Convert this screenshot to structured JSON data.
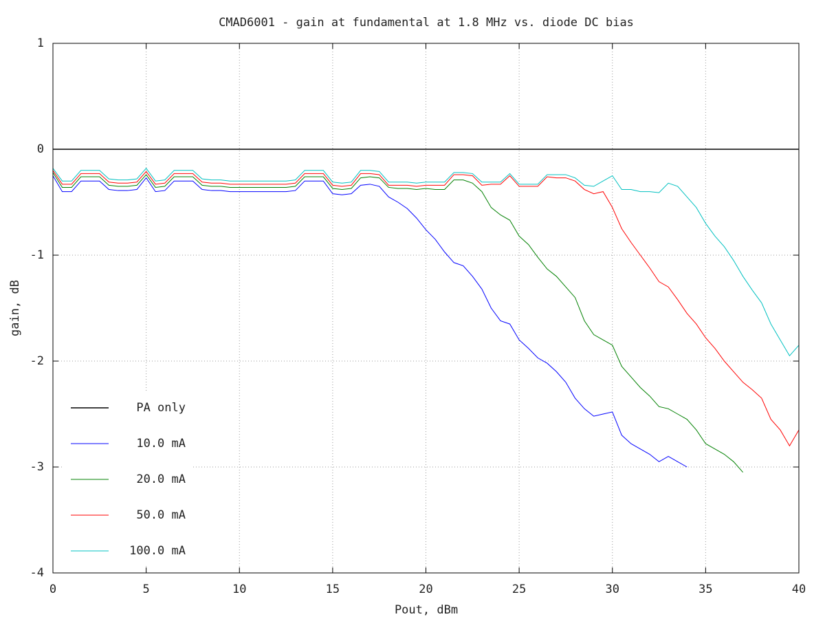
{
  "chart_data": {
    "type": "line",
    "title": "CMAD6001 - gain at fundamental at 1.8 MHz vs. diode DC bias",
    "xlabel": "Pout, dBm",
    "ylabel": "gain, dB",
    "xlim": [
      0,
      40
    ],
    "ylim": [
      -4,
      1
    ],
    "xticks": [
      0,
      5,
      10,
      15,
      20,
      25,
      30,
      35,
      40
    ],
    "yticks": [
      -4,
      -3,
      -2,
      -1,
      0,
      1
    ],
    "grid": true,
    "legend": "lower-left",
    "x": [
      0,
      0.5,
      1,
      1.5,
      2,
      2.5,
      3,
      3.5,
      4,
      4.5,
      5,
      5.5,
      6,
      6.5,
      7,
      7.5,
      8,
      8.5,
      9,
      9.5,
      10,
      10.5,
      11,
      11.5,
      12,
      12.5,
      13,
      13.5,
      14,
      14.5,
      15,
      15.5,
      16,
      16.5,
      17,
      17.5,
      18,
      18.5,
      19,
      19.5,
      20,
      20.5,
      21,
      21.5,
      22,
      22.5,
      23,
      23.5,
      24,
      24.5,
      25,
      25.5,
      26,
      26.5,
      27,
      27.5,
      28,
      28.5,
      29,
      29.5,
      30,
      30.5,
      31,
      31.5,
      32,
      32.5,
      33,
      33.5,
      34,
      34.5,
      35,
      35.5,
      36,
      36.5,
      37,
      37.5,
      38,
      38.5,
      39,
      39.5,
      40
    ],
    "series": [
      {
        "name": "PA only",
        "color": "#000000",
        "values": [
          0,
          0,
          0,
          0,
          0,
          0,
          0,
          0,
          0,
          0,
          0,
          0,
          0,
          0,
          0,
          0,
          0,
          0,
          0,
          0,
          0,
          0,
          0,
          0,
          0,
          0,
          0,
          0,
          0,
          0,
          0,
          0,
          0,
          0,
          0,
          0,
          0,
          0,
          0,
          0,
          0,
          0,
          0,
          0,
          0,
          0,
          0,
          0,
          0,
          0,
          0,
          0,
          0,
          0,
          0,
          0,
          0,
          0,
          0,
          0,
          0,
          0,
          0,
          0,
          0,
          0,
          0,
          0,
          0,
          0,
          0,
          0,
          0,
          0,
          0,
          0,
          0,
          0,
          0,
          0,
          0
        ]
      },
      {
        "name": "10.0 mA",
        "color": "#0000ff",
        "values": [
          -0.25,
          -0.4,
          -0.4,
          -0.3,
          -0.3,
          -0.3,
          -0.38,
          -0.39,
          -0.39,
          -0.38,
          -0.27,
          -0.4,
          -0.39,
          -0.3,
          -0.3,
          -0.3,
          -0.38,
          -0.39,
          -0.39,
          -0.4,
          -0.4,
          -0.4,
          -0.4,
          -0.4,
          -0.4,
          -0.4,
          -0.39,
          -0.3,
          -0.3,
          -0.3,
          -0.42,
          -0.43,
          -0.42,
          -0.34,
          -0.33,
          -0.35,
          -0.45,
          -0.5,
          -0.56,
          -0.65,
          -0.76,
          -0.85,
          -0.97,
          -1.07,
          -1.1,
          -1.2,
          -1.32,
          -1.5,
          -1.62,
          -1.65,
          -1.8,
          -1.88,
          -1.97,
          -2.02,
          -2.1,
          -2.2,
          -2.35,
          -2.45,
          -2.52,
          -2.5,
          -2.48,
          -2.7,
          -2.78,
          -2.83,
          -2.88,
          -2.95,
          -2.9,
          -2.95,
          -3.0,
          null,
          null,
          null,
          null,
          null,
          null,
          null,
          null,
          null,
          null,
          null,
          null
        ]
      },
      {
        "name": "20.0 mA",
        "color": "#008000",
        "values": [
          -0.22,
          -0.36,
          -0.36,
          -0.26,
          -0.26,
          -0.26,
          -0.34,
          -0.35,
          -0.35,
          -0.34,
          -0.24,
          -0.36,
          -0.35,
          -0.26,
          -0.26,
          -0.26,
          -0.34,
          -0.35,
          -0.35,
          -0.36,
          -0.36,
          -0.36,
          -0.36,
          -0.36,
          -0.36,
          -0.36,
          -0.35,
          -0.26,
          -0.26,
          -0.26,
          -0.37,
          -0.38,
          -0.37,
          -0.27,
          -0.26,
          -0.27,
          -0.36,
          -0.37,
          -0.37,
          -0.38,
          -0.37,
          -0.38,
          -0.38,
          -0.29,
          -0.29,
          -0.32,
          -0.4,
          -0.55,
          -0.62,
          -0.67,
          -0.82,
          -0.9,
          -1.02,
          -1.13,
          -1.2,
          -1.3,
          -1.4,
          -1.62,
          -1.75,
          -1.8,
          -1.85,
          -2.05,
          -2.15,
          -2.25,
          -2.33,
          -2.43,
          -2.45,
          -2.5,
          -2.55,
          -2.65,
          -2.78,
          -2.83,
          -2.88,
          -2.95,
          -3.05,
          null,
          null,
          null,
          null,
          null,
          null
        ]
      },
      {
        "name": "50.0 mA",
        "color": "#ff0000",
        "values": [
          -0.2,
          -0.33,
          -0.33,
          -0.23,
          -0.23,
          -0.23,
          -0.31,
          -0.32,
          -0.32,
          -0.31,
          -0.21,
          -0.33,
          -0.32,
          -0.23,
          -0.23,
          -0.23,
          -0.31,
          -0.32,
          -0.32,
          -0.33,
          -0.33,
          -0.33,
          -0.33,
          -0.33,
          -0.33,
          -0.33,
          -0.32,
          -0.23,
          -0.23,
          -0.23,
          -0.34,
          -0.35,
          -0.34,
          -0.23,
          -0.23,
          -0.24,
          -0.34,
          -0.34,
          -0.34,
          -0.35,
          -0.34,
          -0.34,
          -0.34,
          -0.24,
          -0.24,
          -0.25,
          -0.34,
          -0.33,
          -0.33,
          -0.25,
          -0.35,
          -0.35,
          -0.35,
          -0.26,
          -0.27,
          -0.27,
          -0.3,
          -0.38,
          -0.42,
          -0.4,
          -0.55,
          -0.75,
          -0.88,
          -1.0,
          -1.12,
          -1.25,
          -1.3,
          -1.42,
          -1.55,
          -1.65,
          -1.78,
          -1.88,
          -2.0,
          -2.1,
          -2.2,
          -2.27,
          -2.35,
          -2.55,
          -2.65,
          -2.8,
          -2.65
        ]
      },
      {
        "name": "100.0 mA",
        "color": "#00c0c0",
        "values": [
          -0.18,
          -0.3,
          -0.3,
          -0.2,
          -0.2,
          -0.2,
          -0.28,
          -0.29,
          -0.29,
          -0.28,
          -0.18,
          -0.3,
          -0.29,
          -0.2,
          -0.2,
          -0.2,
          -0.28,
          -0.29,
          -0.29,
          -0.3,
          -0.3,
          -0.3,
          -0.3,
          -0.3,
          -0.3,
          -0.3,
          -0.29,
          -0.2,
          -0.2,
          -0.2,
          -0.31,
          -0.32,
          -0.31,
          -0.2,
          -0.2,
          -0.21,
          -0.31,
          -0.31,
          -0.31,
          -0.32,
          -0.31,
          -0.31,
          -0.31,
          -0.22,
          -0.22,
          -0.23,
          -0.31,
          -0.31,
          -0.31,
          -0.23,
          -0.33,
          -0.33,
          -0.33,
          -0.24,
          -0.24,
          -0.24,
          -0.27,
          -0.34,
          -0.35,
          -0.3,
          -0.25,
          -0.38,
          -0.38,
          -0.4,
          -0.4,
          -0.41,
          -0.32,
          -0.35,
          -0.45,
          -0.55,
          -0.7,
          -0.82,
          -0.92,
          -1.05,
          -1.2,
          -1.33,
          -1.45,
          -1.65,
          -1.8,
          -1.95,
          -1.85
        ]
      }
    ]
  }
}
